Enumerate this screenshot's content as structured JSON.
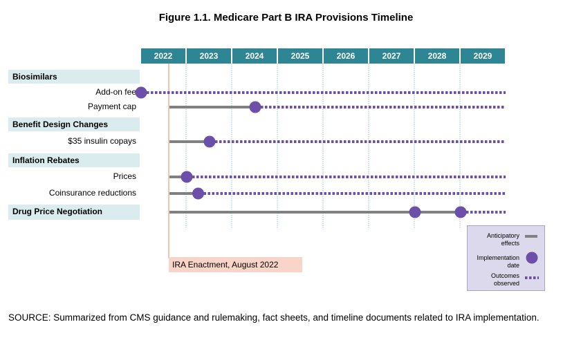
{
  "title": "Figure 1.1. Medicare Part B IRA Provisions Timeline",
  "source": "SOURCE: Summarized from CMS guidance and rulemaking, fact sheets, and timeline documents related to IRA implementation.",
  "colors": {
    "header": "#2e8694",
    "section_band": "#dbecef",
    "anticipatory": "#7f8082",
    "implementation": "#6b4fa8",
    "outcomes": "#6b4fa8",
    "enactment_line": "#e8826a",
    "enactment_box": "#f9d5c9",
    "legend_bg": "#ddd9ec"
  },
  "chart_data": {
    "type": "timeline",
    "x_axis": {
      "years": [
        "2022",
        "2023",
        "2024",
        "2025",
        "2026",
        "2027",
        "2028",
        "2029"
      ],
      "range": [
        2022.0,
        2030.0
      ]
    },
    "enactment": {
      "label": "IRA Enactment, August 2022",
      "date": 2022.6
    },
    "sections": [
      {
        "label": "Biosimilars",
        "rows": [
          {
            "label": "Add-on fee",
            "anticipatory_start": null,
            "implementation": [
              2022.0
            ],
            "outcomes_end": 2030.0
          },
          {
            "label": "Payment cap",
            "anticipatory_start": 2022.0,
            "implementation": [
              2024.5
            ],
            "outcomes_end": 2030.0
          }
        ]
      },
      {
        "label": "Benefit Design Changes",
        "rows": [
          {
            "label": "$35 insulin copays",
            "anticipatory_start": 2022.0,
            "implementation": [
              2023.5
            ],
            "outcomes_end": 2030.0
          }
        ]
      },
      {
        "label": "Inflation Rebates",
        "rows": [
          {
            "label": "Prices",
            "anticipatory_start": 2022.0,
            "implementation": [
              2023.0
            ],
            "outcomes_end": 2030.0
          },
          {
            "label": "Coinsurance reductions",
            "anticipatory_start": 2022.0,
            "implementation": [
              2023.25
            ],
            "outcomes_end": 2030.0
          }
        ]
      },
      {
        "label": "Drug Price Negotiation",
        "rows": [
          {
            "label": "",
            "anticipatory_start": 2022.0,
            "implementation": [
              2028.0,
              2029.0
            ],
            "outcomes_end": 2030.0
          }
        ]
      }
    ],
    "legend": {
      "anticipatory": "Anticipatory effects",
      "implementation": "Implementation date",
      "outcomes": "Outcomes observed"
    },
    "legend_placement": "bottom-right"
  }
}
